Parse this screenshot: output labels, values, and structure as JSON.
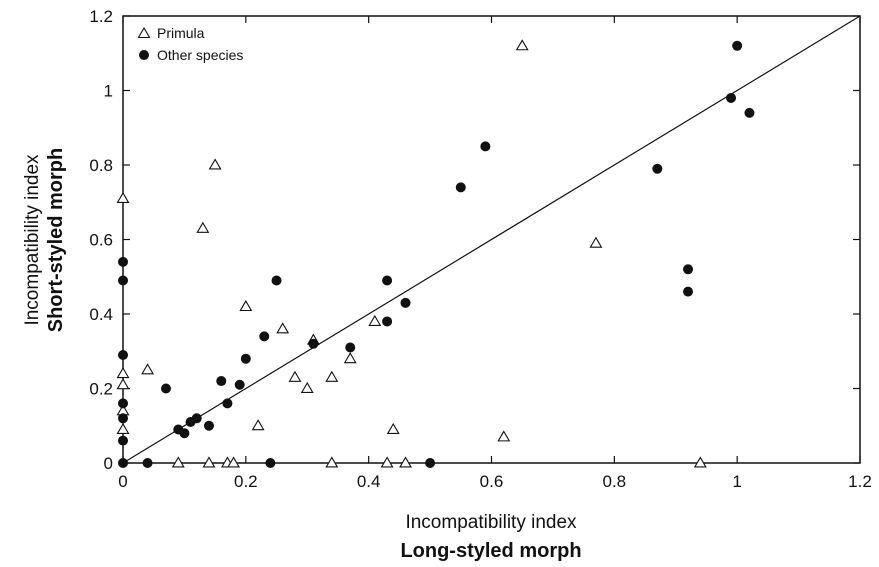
{
  "chart_data": {
    "type": "scatter",
    "xlabel": [
      "Incompatibility index",
      "Long-styled morph"
    ],
    "ylabel": [
      "Incompatibility index",
      "Short-styled morph"
    ],
    "xlim": [
      0,
      1.2
    ],
    "ylim": [
      0,
      1.2
    ],
    "x_ticks": [
      "0",
      "0.2",
      "0.4",
      "0.6",
      "0.8",
      "1",
      "1.2"
    ],
    "y_ticks": [
      "0",
      "0.2",
      "0.4",
      "0.6",
      "0.8",
      "1",
      "1.2"
    ],
    "grid": false,
    "legend_position": "top-left",
    "reference_line": {
      "from": [
        0,
        0
      ],
      "to": [
        1.2,
        1.2
      ]
    },
    "series": [
      {
        "name": "Primula",
        "marker": "open-triangle",
        "points": [
          [
            0.0,
            0.71
          ],
          [
            0.0,
            0.24
          ],
          [
            0.0,
            0.21
          ],
          [
            0.0,
            0.14
          ],
          [
            0.0,
            0.09
          ],
          [
            0.04,
            0.25
          ],
          [
            0.09,
            0.0
          ],
          [
            0.13,
            0.63
          ],
          [
            0.15,
            0.8
          ],
          [
            0.14,
            0.0
          ],
          [
            0.17,
            0.0
          ],
          [
            0.18,
            0.0
          ],
          [
            0.2,
            0.42
          ],
          [
            0.22,
            0.1
          ],
          [
            0.26,
            0.36
          ],
          [
            0.28,
            0.23
          ],
          [
            0.3,
            0.2
          ],
          [
            0.31,
            0.33
          ],
          [
            0.34,
            0.23
          ],
          [
            0.34,
            0.0
          ],
          [
            0.37,
            0.28
          ],
          [
            0.41,
            0.38
          ],
          [
            0.44,
            0.09
          ],
          [
            0.43,
            0.0
          ],
          [
            0.46,
            0.0
          ],
          [
            0.62,
            0.07
          ],
          [
            0.65,
            1.12
          ],
          [
            0.77,
            0.59
          ],
          [
            0.94,
            0.0
          ]
        ]
      },
      {
        "name": "Other species",
        "marker": "filled-circle",
        "points": [
          [
            0.0,
            0.54
          ],
          [
            0.0,
            0.49
          ],
          [
            0.0,
            0.29
          ],
          [
            0.0,
            0.16
          ],
          [
            0.0,
            0.12
          ],
          [
            0.0,
            0.06
          ],
          [
            0.0,
            0.0
          ],
          [
            0.04,
            0.0
          ],
          [
            0.07,
            0.2
          ],
          [
            0.09,
            0.09
          ],
          [
            0.1,
            0.08
          ],
          [
            0.11,
            0.11
          ],
          [
            0.12,
            0.12
          ],
          [
            0.14,
            0.1
          ],
          [
            0.16,
            0.22
          ],
          [
            0.17,
            0.16
          ],
          [
            0.19,
            0.21
          ],
          [
            0.2,
            0.28
          ],
          [
            0.23,
            0.34
          ],
          [
            0.24,
            0.0
          ],
          [
            0.25,
            0.49
          ],
          [
            0.31,
            0.32
          ],
          [
            0.37,
            0.31
          ],
          [
            0.43,
            0.49
          ],
          [
            0.43,
            0.38
          ],
          [
            0.46,
            0.43
          ],
          [
            0.5,
            0.0
          ],
          [
            0.55,
            0.74
          ],
          [
            0.59,
            0.85
          ],
          [
            0.87,
            0.79
          ],
          [
            0.92,
            0.46
          ],
          [
            0.92,
            0.52
          ],
          [
            0.99,
            0.98
          ],
          [
            1.0,
            1.12
          ],
          [
            1.02,
            0.94
          ]
        ]
      }
    ]
  }
}
